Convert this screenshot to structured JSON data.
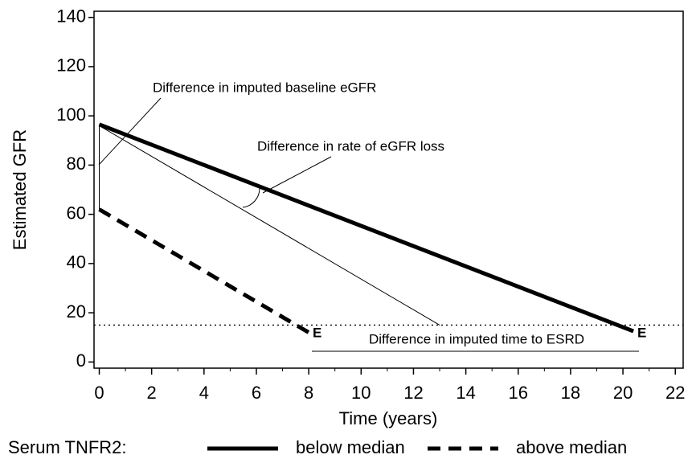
{
  "chart_data": {
    "type": "line",
    "x_label": "Time (years)",
    "y_label": "Estimated GFR",
    "xlim": [
      -0.2,
      22.3
    ],
    "ylim": [
      -2.5,
      142.5
    ],
    "xticks": [
      0,
      2,
      4,
      6,
      8,
      10,
      12,
      14,
      16,
      18,
      20,
      22
    ],
    "xminor_ticks": [
      1,
      3,
      5,
      7,
      9,
      11,
      13,
      15,
      17,
      19,
      21
    ],
    "yticks": [
      0,
      20,
      40,
      60,
      80,
      100,
      120,
      140
    ],
    "legend_title": "Serum TNFR2:",
    "series": [
      {
        "name": "below median",
        "color": "#000000",
        "dash": "solid",
        "x": [
          0,
          20.4
        ],
        "values": [
          96.5,
          12.5
        ]
      },
      {
        "name": "above median",
        "color": "#000000",
        "dash": "dashed",
        "x": [
          0,
          8
        ],
        "values": [
          62,
          12
        ]
      }
    ],
    "reference_line": {
      "x": [
        0,
        13
      ],
      "values": [
        96,
        15
      ]
    },
    "threshold": 15,
    "annotations": {
      "baseline": "Difference in imputed baseline eGFR",
      "rate": "Difference in rate of eGFR loss",
      "time": "Difference in imputed time to ESRD",
      "end_marker": "E"
    }
  }
}
